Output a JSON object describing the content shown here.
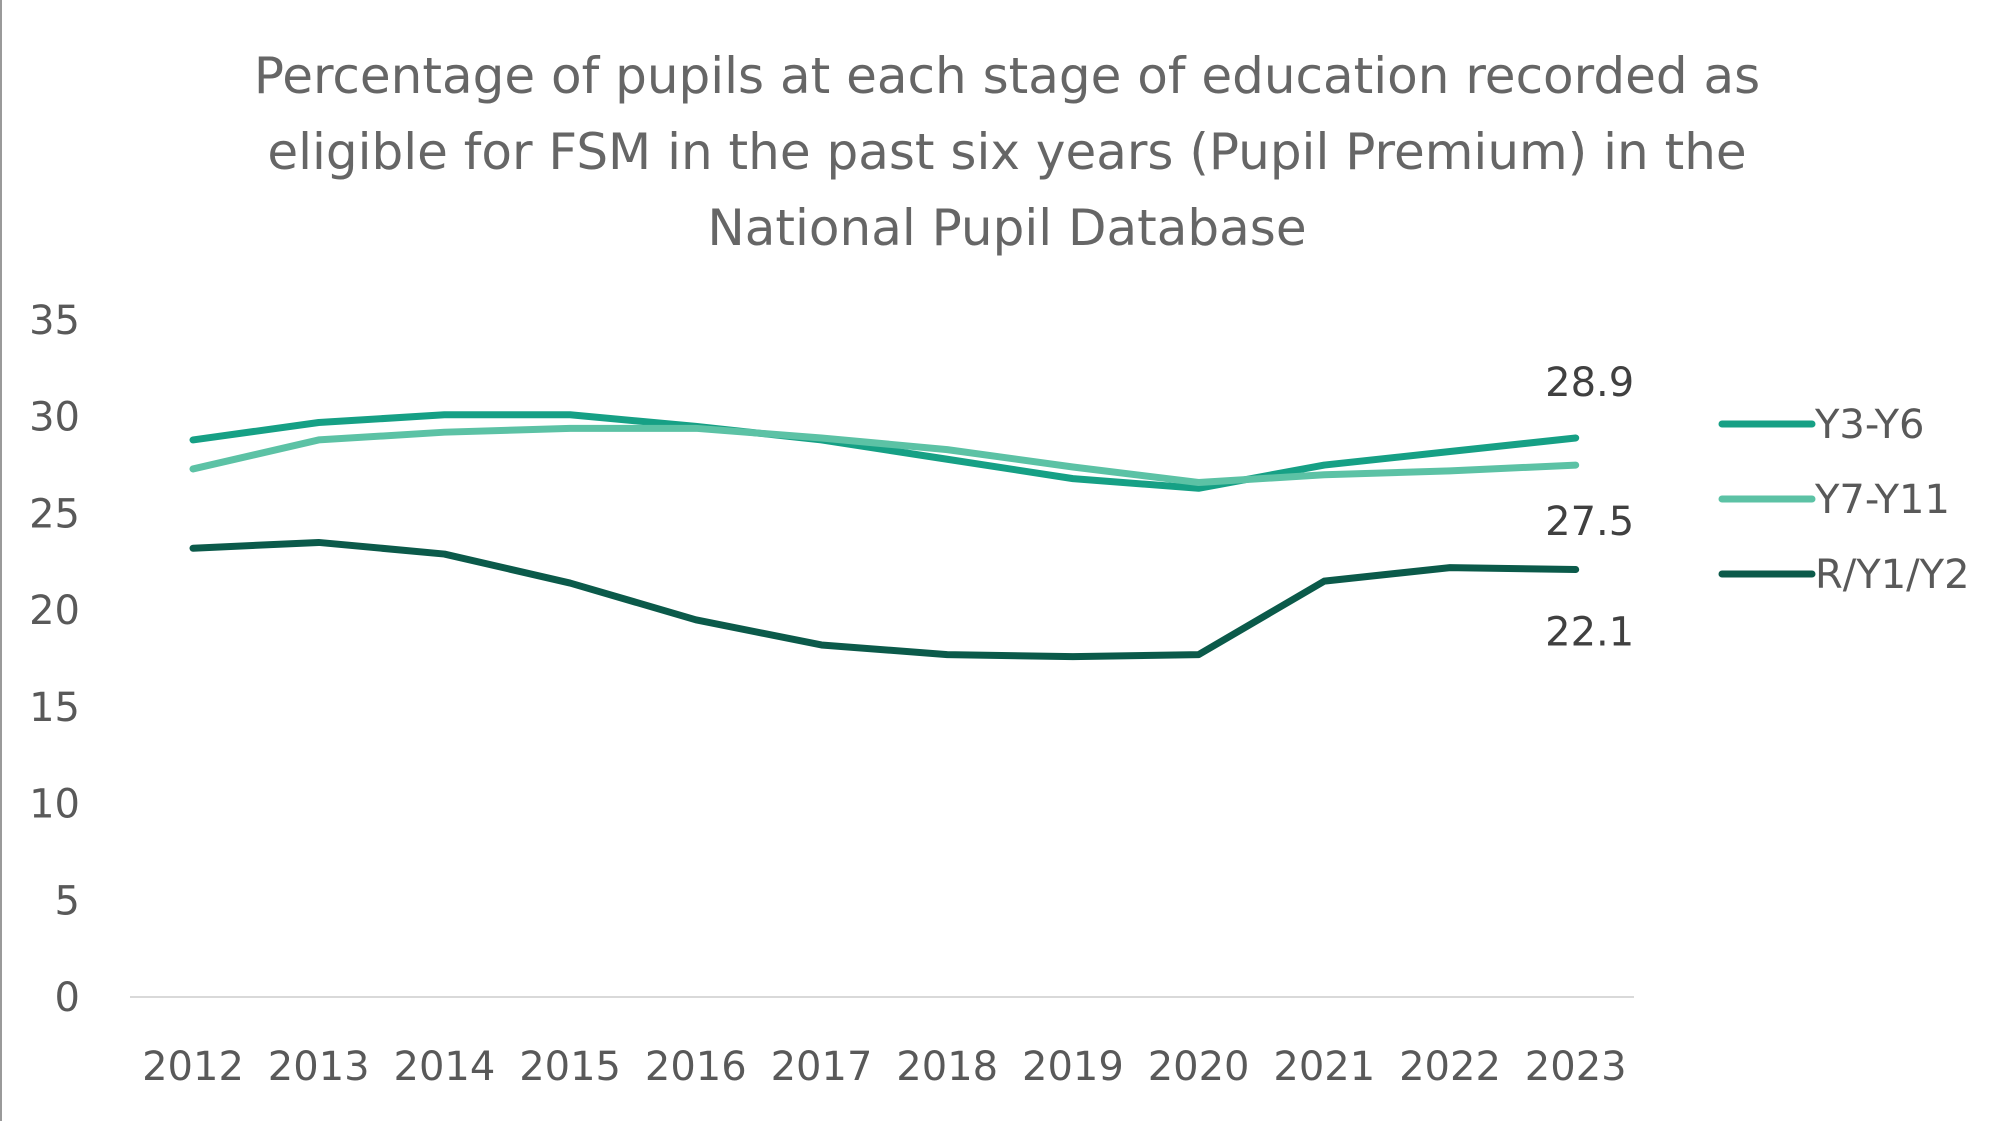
{
  "chart_data": {
    "type": "line",
    "title": "Percentage of pupils at each stage of education recorded as eligible for FSM in the past six years (Pupil Premium) in the National Pupil Database",
    "xlabel": "",
    "ylabel": "",
    "x": [
      "2012",
      "2013",
      "2014",
      "2015",
      "2016",
      "2017",
      "2018",
      "2019",
      "2020",
      "2021",
      "2022",
      "2023"
    ],
    "ylim": [
      0,
      35
    ],
    "yticks": [
      0,
      5,
      10,
      15,
      20,
      25,
      30,
      35
    ],
    "grid": false,
    "legend_position": "right",
    "series": [
      {
        "name": "Y3-Y6",
        "color": "#16a085",
        "values": [
          28.8,
          29.7,
          30.1,
          30.1,
          29.5,
          28.8,
          27.8,
          26.8,
          26.3,
          27.5,
          28.2,
          28.9
        ],
        "end_label": "28.9"
      },
      {
        "name": "Y7-Y11",
        "color": "#5cc2a5",
        "values": [
          27.3,
          28.8,
          29.2,
          29.4,
          29.4,
          28.9,
          28.3,
          27.4,
          26.6,
          27.0,
          27.2,
          27.5
        ],
        "end_label": "27.5"
      },
      {
        "name": "R/Y1/Y2",
        "color": "#0b5a4a",
        "values": [
          23.2,
          23.5,
          22.9,
          21.4,
          19.5,
          18.2,
          17.7,
          17.6,
          17.7,
          21.5,
          22.2,
          22.1
        ],
        "end_label": "22.1"
      }
    ]
  }
}
